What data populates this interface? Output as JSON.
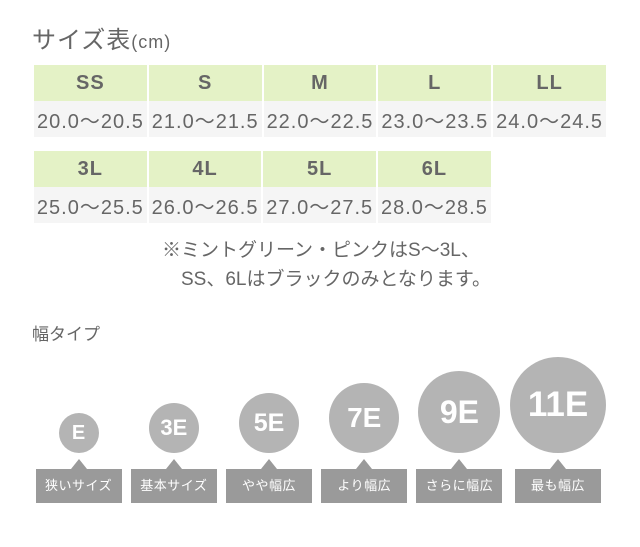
{
  "title": "サイズ表",
  "title_unit": "(cm)",
  "table1": {
    "headers": [
      "SS",
      "S",
      "M",
      "L",
      "LL"
    ],
    "values": [
      "20.0〜20.5",
      "21.0〜21.5",
      "22.0〜22.5",
      "23.0〜23.5",
      "24.0〜24.5"
    ]
  },
  "table2": {
    "headers": [
      "3L",
      "4L",
      "5L",
      "6L"
    ],
    "values": [
      "25.0〜25.5",
      "26.0〜26.5",
      "27.0〜27.5",
      "28.0〜28.5"
    ]
  },
  "note_l1": "※ミントグリーン・ピンクはS〜3L、",
  "note_l2": "　SS、6Lはブラックのみとなります。",
  "width_title": "幅タイプ",
  "widths": [
    {
      "code": "E",
      "label": "狭いサイズ",
      "d": 40,
      "fs": 20
    },
    {
      "code": "3E",
      "label": "基本サイズ",
      "d": 50,
      "fs": 22
    },
    {
      "code": "5E",
      "label": "やや幅広",
      "d": 60,
      "fs": 25
    },
    {
      "code": "7E",
      "label": "より幅広",
      "d": 70,
      "fs": 28
    },
    {
      "code": "9E",
      "label": "さらに幅広",
      "d": 82,
      "fs": 32
    },
    {
      "code": "11E",
      "label": "最も幅広",
      "d": 96,
      "fs": 35
    }
  ],
  "colors": {
    "text": "#666666",
    "header_bg": "#e4f2c6",
    "value_bg": "#f5f5f5",
    "circle_bg": "#b4b4b4",
    "label_bg": "#9a9a9a",
    "background": "#ffffff"
  }
}
